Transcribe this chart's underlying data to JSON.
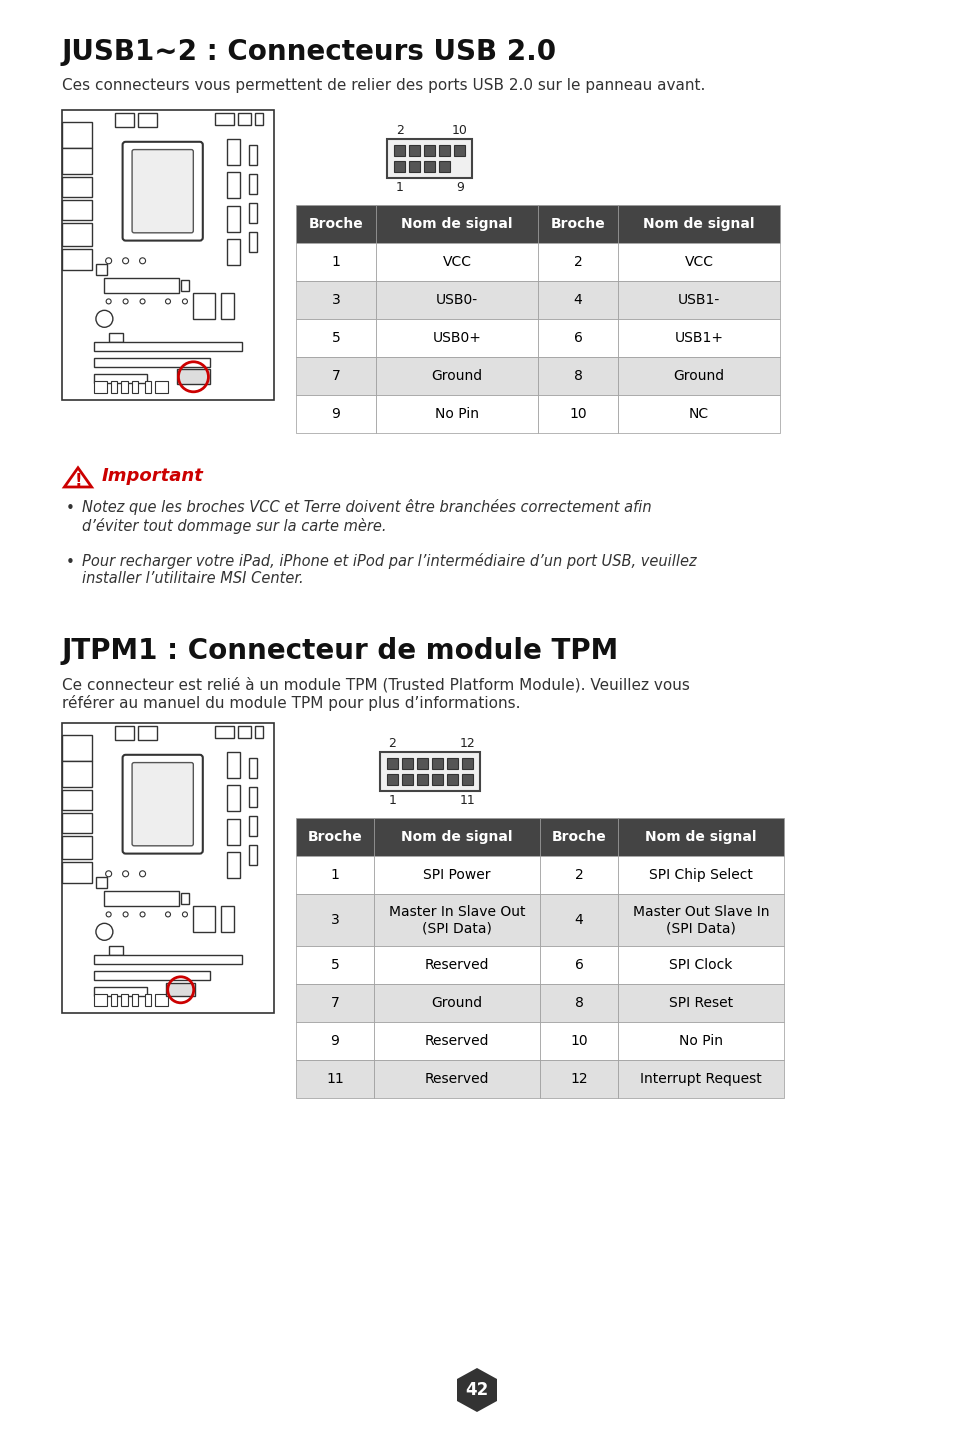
{
  "bg_color": "#ffffff",
  "title1": "JUSB1~2 : Connecteurs USB 2.0",
  "desc1": "Ces connecteurs vous permettent de relier des ports USB 2.0 sur le panneau avant.",
  "usb_table_header": [
    "Broche",
    "Nom de signal",
    "Broche",
    "Nom de signal"
  ],
  "usb_table_rows": [
    [
      "1",
      "VCC",
      "2",
      "VCC"
    ],
    [
      "3",
      "USB0-",
      "4",
      "USB1-"
    ],
    [
      "5",
      "USB0+",
      "6",
      "USB1+"
    ],
    [
      "7",
      "Ground",
      "8",
      "Ground"
    ],
    [
      "9",
      "No Pin",
      "10",
      "NC"
    ]
  ],
  "important_label": "Important",
  "important_bullets": [
    "Notez que les broches VCC et Terre doivent être branchées correctement afin\nd’éviter tout dommage sur la carte mère.",
    "Pour recharger votre iPad, iPhone et iPod par l’intermédiaire d’un port USB, veuillez\ninstaller l’utilitaire MSI Center."
  ],
  "title2": "JTPM1 : Connecteur de module TPM",
  "desc2": "Ce connecteur est relié à un module TPM (Trusted Platform Module). Veuillez vous\nréférer au manuel du module TPM pour plus d’informations.",
  "tpm_table_header": [
    "Broche",
    "Nom de signal",
    "Broche",
    "Nom de signal"
  ],
  "tpm_table_rows": [
    [
      "1",
      "SPI Power",
      "2",
      "SPI Chip Select"
    ],
    [
      "3",
      "Master In Slave Out\n(SPI Data)",
      "4",
      "Master Out Slave In\n(SPI Data)"
    ],
    [
      "5",
      "Reserved",
      "6",
      "SPI Clock"
    ],
    [
      "7",
      "Ground",
      "8",
      "SPI Reset"
    ],
    [
      "9",
      "Reserved",
      "10",
      "No Pin"
    ],
    [
      "11",
      "Reserved",
      "12",
      "Interrupt Request"
    ]
  ],
  "page_number": "42",
  "header_color": "#444444",
  "header_text_color": "#ffffff",
  "row_odd_color": "#ffffff",
  "row_even_color": "#e0e0e0",
  "text_color": "#000000",
  "important_color": "#cc0000",
  "border_color": "#999999"
}
